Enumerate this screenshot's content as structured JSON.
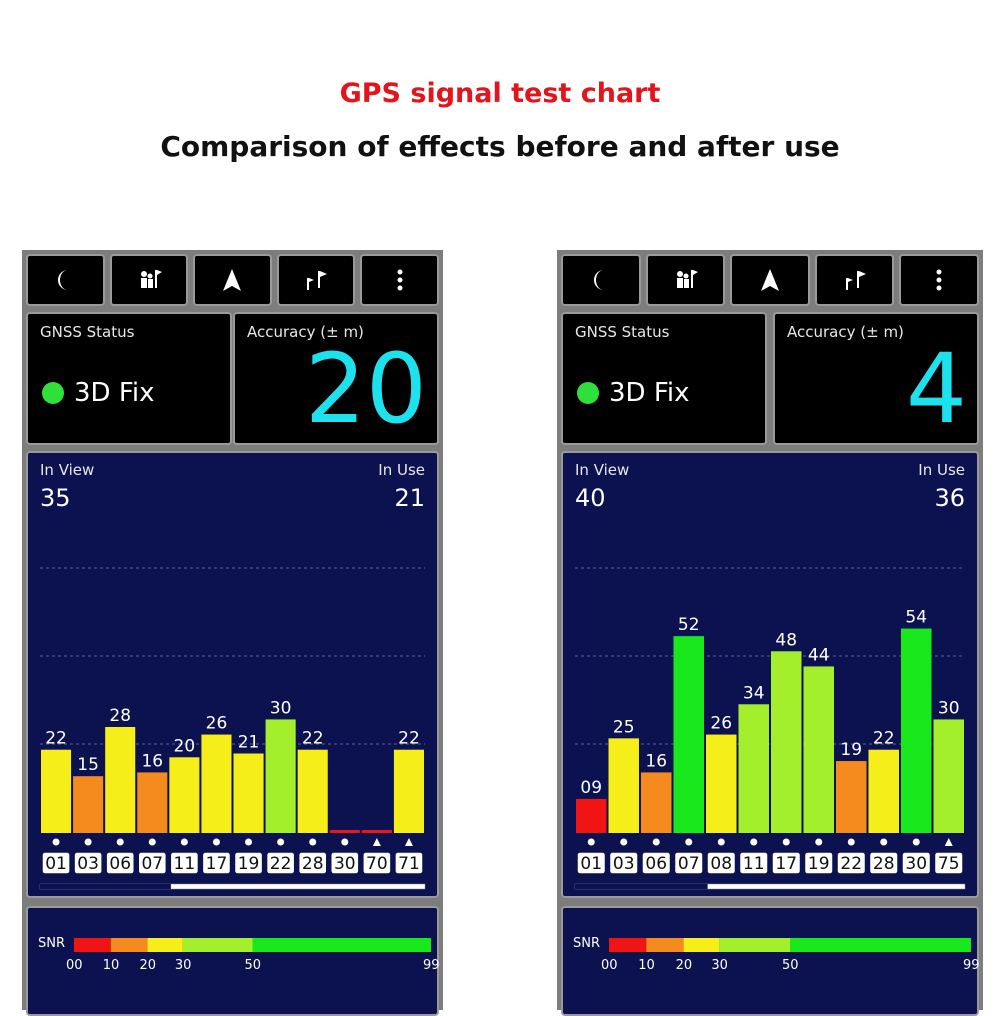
{
  "title": "GPS signal test chart",
  "subtitle": "Comparison of effects before and after use",
  "toolbar_icons": [
    "moon-icon",
    "people-flag-icon",
    "navigation-arrow-icon",
    "route-flags-icon",
    "more-vertical-icon"
  ],
  "panels": [
    {
      "gnss_label": "GNSS Status",
      "fix_text": "3D Fix",
      "accuracy_label": "Accuracy (± m)",
      "accuracy_value": "20",
      "in_view_label": "In View",
      "in_view_value": "35",
      "in_use_label": "In Use",
      "in_use_value": "21",
      "chart_data": {
        "type": "bar",
        "categories": [
          "01",
          "03",
          "06",
          "07",
          "11",
          "17",
          "19",
          "22",
          "28",
          "30",
          "70",
          "71"
        ],
        "values": [
          22,
          15,
          28,
          16,
          20,
          26,
          21,
          30,
          22,
          0,
          0,
          22
        ],
        "value_labels": [
          "22",
          "15",
          "28",
          "16",
          "20",
          "26",
          "21",
          "30",
          "22",
          "",
          "",
          "22"
        ],
        "markers": [
          "dot",
          "dot",
          "dot",
          "dot",
          "dot",
          "dot",
          "dot",
          "dot",
          "dot",
          "dot",
          "triangle",
          "triangle"
        ],
        "ylim": [
          0,
          70
        ]
      }
    },
    {
      "gnss_label": "GNSS Status",
      "fix_text": "3D Fix",
      "accuracy_label": "Accuracy (± m)",
      "accuracy_value": "4",
      "in_view_label": "In View",
      "in_view_value": "40",
      "in_use_label": "In Use",
      "in_use_value": "36",
      "chart_data": {
        "type": "bar",
        "categories": [
          "01",
          "03",
          "06",
          "07",
          "08",
          "11",
          "17",
          "19",
          "22",
          "28",
          "30",
          "75"
        ],
        "values": [
          9,
          25,
          16,
          52,
          26,
          34,
          48,
          44,
          19,
          22,
          54,
          30
        ],
        "value_labels": [
          "09",
          "25",
          "16",
          "52",
          "26",
          "34",
          "48",
          "44",
          "19",
          "22",
          "54",
          "30"
        ],
        "markers": [
          "dot",
          "dot",
          "dot",
          "dot",
          "dot",
          "dot",
          "dot",
          "dot",
          "dot",
          "dot",
          "dot",
          "triangle"
        ],
        "ylim": [
          0,
          70
        ]
      }
    }
  ],
  "snr_legend": {
    "label": "SNR",
    "ticks": [
      "00",
      "10",
      "20",
      "30",
      "50",
      "99"
    ],
    "segments": [
      {
        "from": 0,
        "to": 10,
        "color": "#f01414"
      },
      {
        "from": 10,
        "to": 20,
        "color": "#f58a1f"
      },
      {
        "from": 20,
        "to": 30,
        "color": "#f5ee18"
      },
      {
        "from": 30,
        "to": 50,
        "color": "#a4ef2b"
      },
      {
        "from": 50,
        "to": 99,
        "color": "#19e81c"
      }
    ]
  },
  "colors": {
    "title": "#e3141b",
    "accuracy": "#1de2ee",
    "fix_dot": "#2fe03a",
    "panel_bg": "#0c1250"
  }
}
